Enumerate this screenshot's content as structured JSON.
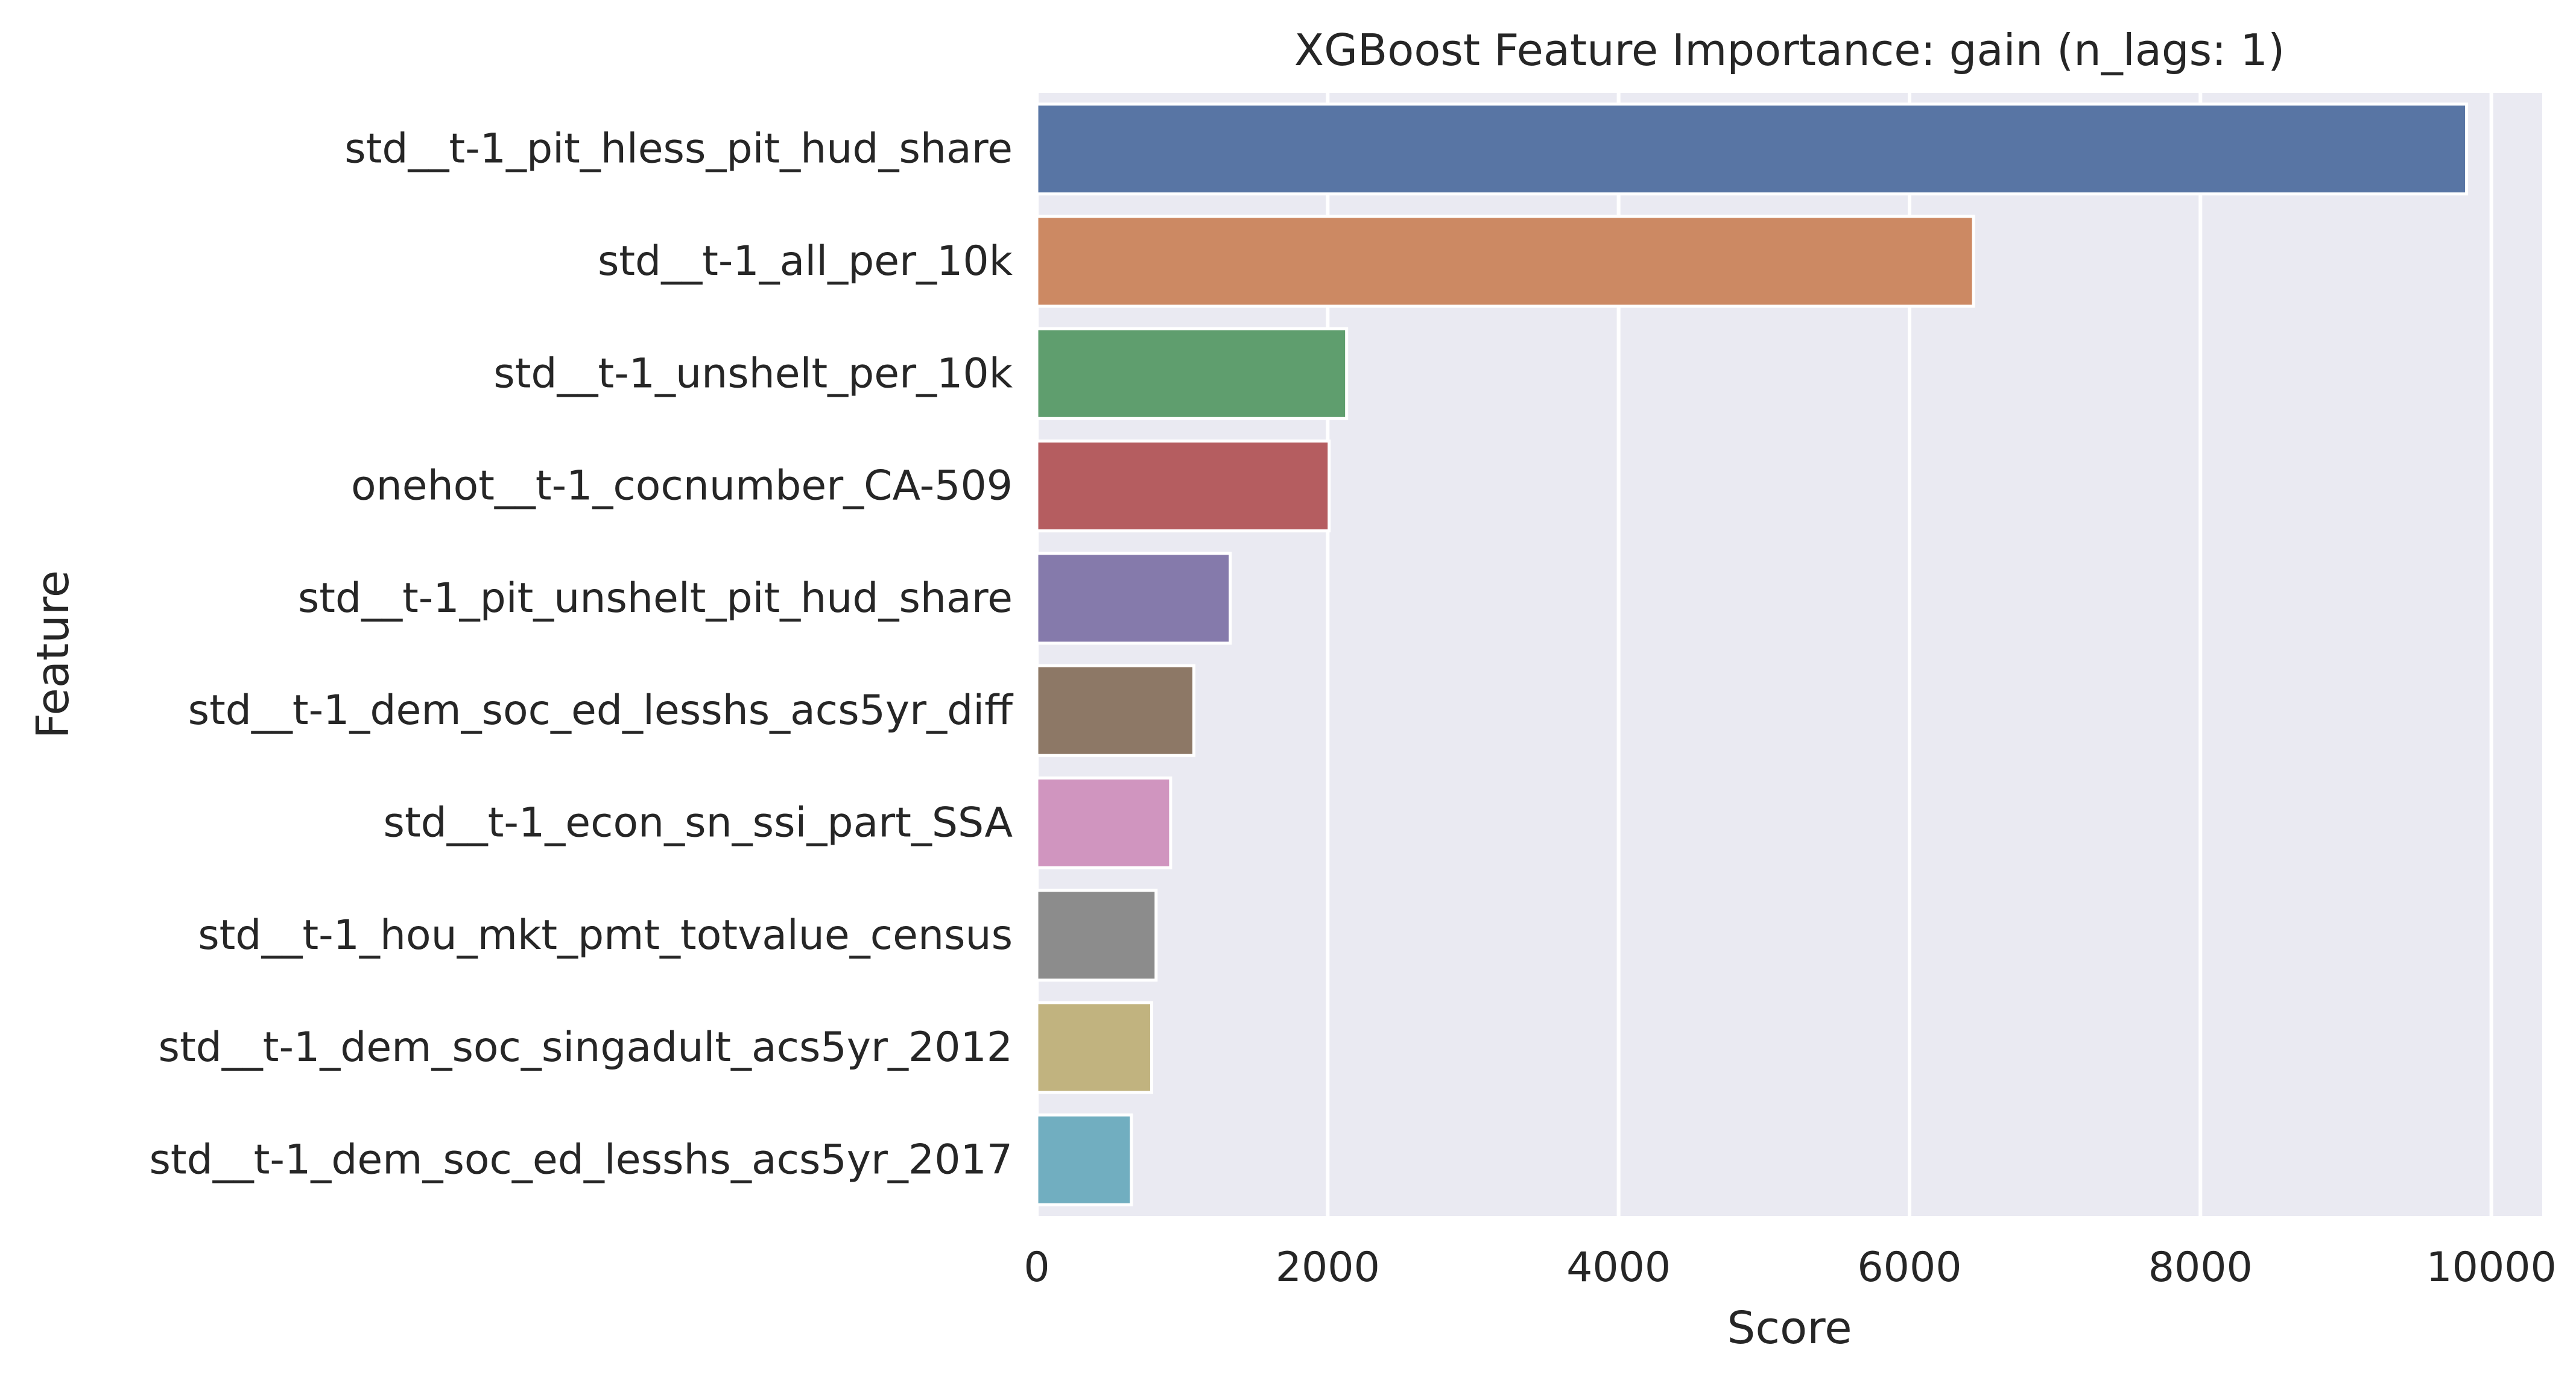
{
  "chart_data": {
    "type": "bar",
    "orientation": "horizontal",
    "title": "XGBoost Feature Importance: gain (n_lags: 1)",
    "xlabel": "Score",
    "ylabel": "Feature",
    "categories": [
      "std__t-1_pit_hless_pit_hud_share",
      "std__t-1_all_per_10k",
      "std__t-1_unshelt_per_10k",
      "onehot__t-1_cocnumber_CA-509",
      "std__t-1_pit_unshelt_pit_hud_share",
      "std__t-1_dem_soc_ed_lesshs_acs5yr_diff",
      "std__t-1_econ_sn_ssi_part_SSA",
      "std__t-1_hou_mkt_pmt_totvalue_census",
      "std__t-1_dem_soc_singadult_acs5yr_2012",
      "std__t-1_dem_soc_ed_lesshs_acs5yr_2017"
    ],
    "values": [
      9830,
      6440,
      2130,
      2010,
      1330,
      1080,
      920,
      820,
      790,
      650
    ],
    "colors": [
      "#5875a4",
      "#cc8963",
      "#5f9e6e",
      "#b55d60",
      "#857aab",
      "#8d7866",
      "#d095bf",
      "#8c8c8c",
      "#c1b37f",
      "#71aec0"
    ],
    "xlim": [
      0,
      10350
    ],
    "xticks": [
      "0",
      "2000",
      "4000",
      "6000",
      "8000",
      "10000"
    ],
    "xtick_values": [
      0,
      2000,
      4000,
      6000,
      8000,
      10000
    ],
    "grid": true,
    "background": "#eaeaf2",
    "grid_color": "#ffffff"
  }
}
